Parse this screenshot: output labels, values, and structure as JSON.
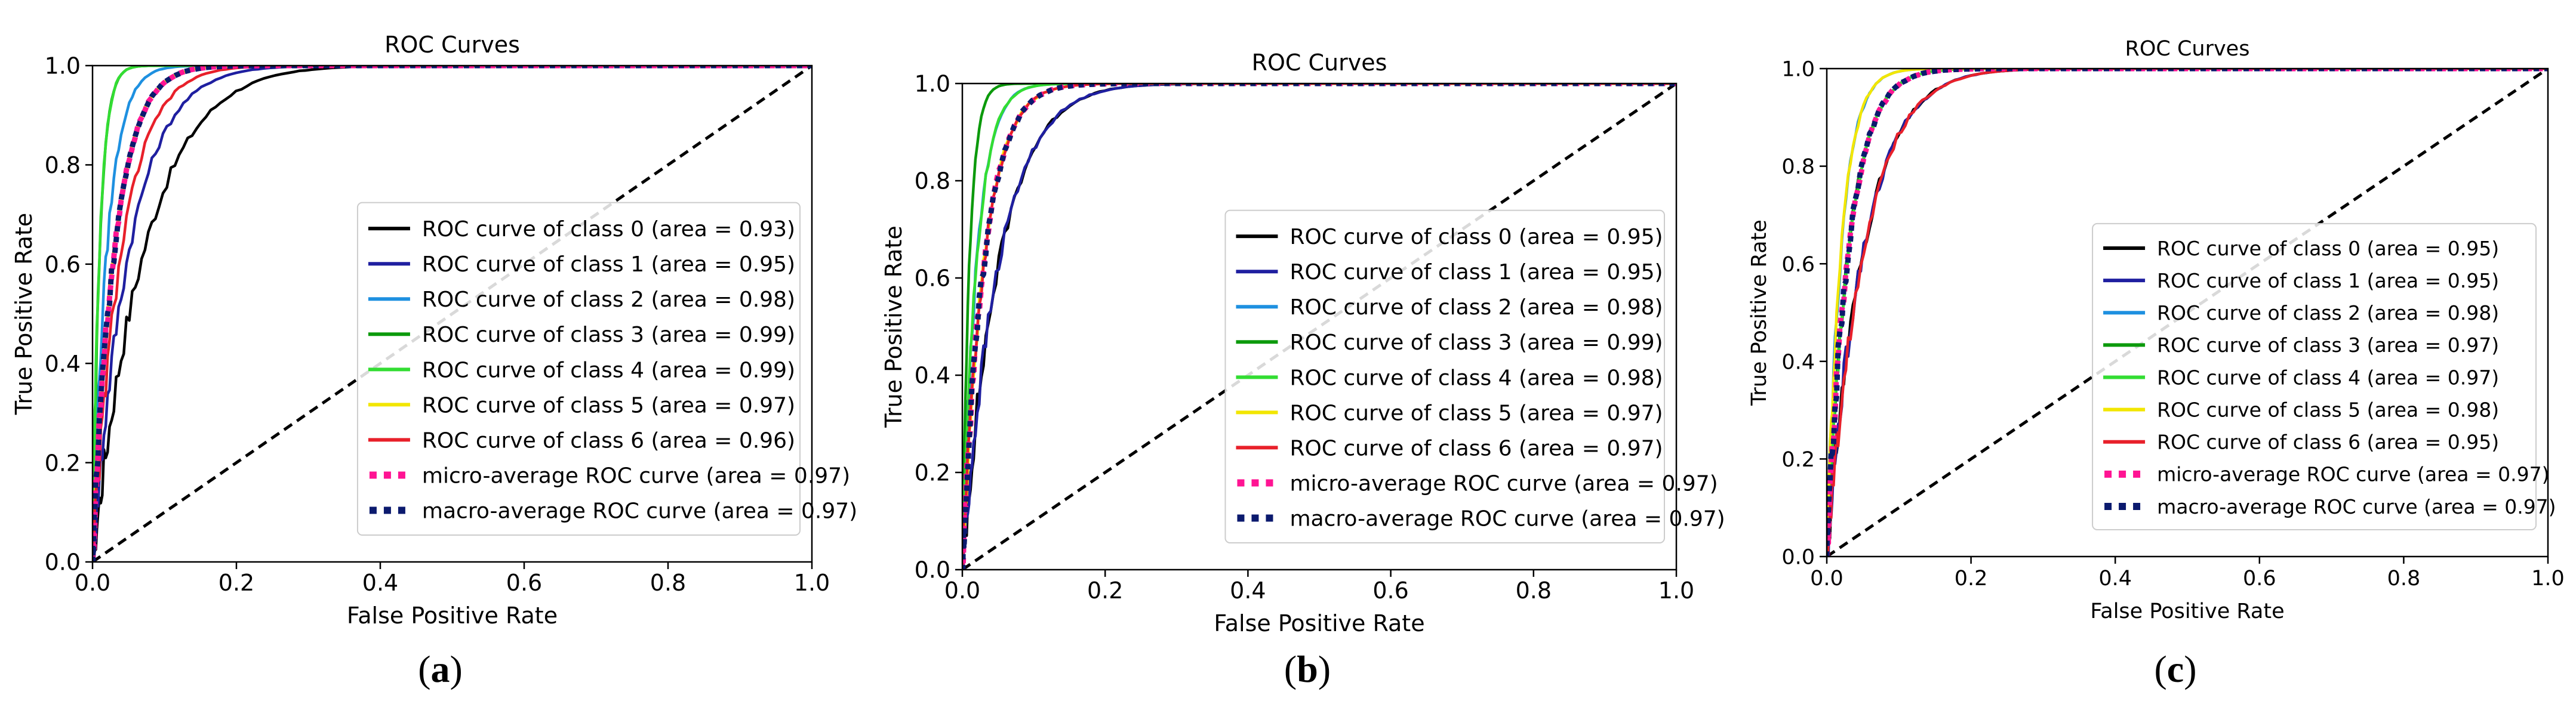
{
  "chart_data": [
    {
      "type": "line",
      "panel_label": "a",
      "title": "ROC Curves",
      "xlabel": "False Positive Rate",
      "ylabel": "True Positive Rate",
      "xlim": [
        0.0,
        1.0
      ],
      "ylim": [
        0.0,
        1.0
      ],
      "xticks": [
        "0.0",
        "0.2",
        "0.4",
        "0.6",
        "0.8",
        "1.0"
      ],
      "yticks": [
        "0.0",
        "0.2",
        "0.4",
        "0.6",
        "0.8",
        "1.0"
      ],
      "grid": false,
      "legend_position": "lower-right",
      "series": [
        {
          "name": "ROC curve of class 0 (area = 0.93)",
          "color": "#000000",
          "style": "solid",
          "auc": 0.93
        },
        {
          "name": "ROC curve of class 1 (area = 0.95)",
          "color": "#1f1fa0",
          "style": "solid",
          "auc": 0.95
        },
        {
          "name": "ROC curve of class 2 (area = 0.98)",
          "color": "#1e90e0",
          "style": "solid",
          "auc": 0.98
        },
        {
          "name": "ROC curve of class 3 (area = 0.99)",
          "color": "#0c9a0c",
          "style": "solid",
          "auc": 0.99
        },
        {
          "name": "ROC curve of class 4 (area = 0.99)",
          "color": "#33dd33",
          "style": "solid",
          "auc": 0.99
        },
        {
          "name": "ROC curve of class 5 (area = 0.97)",
          "color": "#f2e600",
          "style": "solid",
          "auc": 0.97
        },
        {
          "name": "ROC curve of class 6 (area = 0.96)",
          "color": "#e8202a",
          "style": "solid",
          "auc": 0.96
        },
        {
          "name": "micro-average ROC curve (area = 0.97)",
          "color": "#ff1493",
          "style": "dotted",
          "auc": 0.97
        },
        {
          "name": "macro-average ROC curve (area = 0.97)",
          "color": "#0b1a6e",
          "style": "dotted",
          "auc": 0.97
        }
      ],
      "chance_line": {
        "x": [
          0,
          1
        ],
        "y": [
          0,
          1
        ],
        "color": "#000000",
        "style": "dashed"
      }
    },
    {
      "type": "line",
      "panel_label": "b",
      "title": "ROC Curves",
      "xlabel": "False Positive Rate",
      "ylabel": "True Positive Rate",
      "xlim": [
        0.0,
        1.0
      ],
      "ylim": [
        0.0,
        1.0
      ],
      "xticks": [
        "0.0",
        "0.2",
        "0.4",
        "0.6",
        "0.8",
        "1.0"
      ],
      "yticks": [
        "0.0",
        "0.2",
        "0.4",
        "0.6",
        "0.8",
        "1.0"
      ],
      "grid": false,
      "legend_position": "lower-right",
      "series": [
        {
          "name": "ROC curve of class 0 (area = 0.95)",
          "color": "#000000",
          "style": "solid",
          "auc": 0.95
        },
        {
          "name": "ROC curve of class 1 (area = 0.95)",
          "color": "#1f1fa0",
          "style": "solid",
          "auc": 0.95
        },
        {
          "name": "ROC curve of class 2 (area = 0.98)",
          "color": "#1e90e0",
          "style": "solid",
          "auc": 0.98
        },
        {
          "name": "ROC curve of class 3 (area = 0.99)",
          "color": "#0c9a0c",
          "style": "solid",
          "auc": 0.99
        },
        {
          "name": "ROC curve of class 4 (area = 0.98)",
          "color": "#33dd33",
          "style": "solid",
          "auc": 0.98
        },
        {
          "name": "ROC curve of class 5 (area = 0.97)",
          "color": "#f2e600",
          "style": "solid",
          "auc": 0.97
        },
        {
          "name": "ROC curve of class 6 (area = 0.97)",
          "color": "#e8202a",
          "style": "solid",
          "auc": 0.97
        },
        {
          "name": "micro-average ROC curve (area = 0.97)",
          "color": "#ff1493",
          "style": "dotted",
          "auc": 0.97
        },
        {
          "name": "macro-average ROC curve (area = 0.97)",
          "color": "#0b1a6e",
          "style": "dotted",
          "auc": 0.97
        }
      ],
      "chance_line": {
        "x": [
          0,
          1
        ],
        "y": [
          0,
          1
        ],
        "color": "#000000",
        "style": "dashed"
      }
    },
    {
      "type": "line",
      "panel_label": "c",
      "title": "ROC Curves",
      "xlabel": "False Positive Rate",
      "ylabel": "True Positive Rate",
      "xlim": [
        0.0,
        1.0
      ],
      "ylim": [
        0.0,
        1.0
      ],
      "xticks": [
        "0.0",
        "0.2",
        "0.4",
        "0.6",
        "0.8",
        "1.0"
      ],
      "yticks": [
        "0.0",
        "0.2",
        "0.4",
        "0.6",
        "0.8",
        "1.0"
      ],
      "grid": false,
      "legend_position": "lower-right",
      "series": [
        {
          "name": "ROC curve of class 0 (area = 0.95)",
          "color": "#000000",
          "style": "solid",
          "auc": 0.95
        },
        {
          "name": "ROC curve of class 1 (area = 0.95)",
          "color": "#1f1fa0",
          "style": "solid",
          "auc": 0.95
        },
        {
          "name": "ROC curve of class 2 (area = 0.98)",
          "color": "#1e90e0",
          "style": "solid",
          "auc": 0.98
        },
        {
          "name": "ROC curve of class 3 (area = 0.97)",
          "color": "#0c9a0c",
          "style": "solid",
          "auc": 0.97
        },
        {
          "name": "ROC curve of class 4 (area = 0.97)",
          "color": "#33dd33",
          "style": "solid",
          "auc": 0.97
        },
        {
          "name": "ROC curve of class 5 (area = 0.98)",
          "color": "#f2e600",
          "style": "solid",
          "auc": 0.98
        },
        {
          "name": "ROC curve of class 6 (area = 0.95)",
          "color": "#e8202a",
          "style": "solid",
          "auc": 0.95
        },
        {
          "name": "micro-average ROC curve (area = 0.97)",
          "color": "#ff1493",
          "style": "dotted",
          "auc": 0.97
        },
        {
          "name": "macro-average ROC curve (area = 0.97)",
          "color": "#0b1a6e",
          "style": "dotted",
          "auc": 0.97
        }
      ],
      "chance_line": {
        "x": [
          0,
          1
        ],
        "y": [
          0,
          1
        ],
        "color": "#000000",
        "style": "dashed"
      }
    }
  ]
}
